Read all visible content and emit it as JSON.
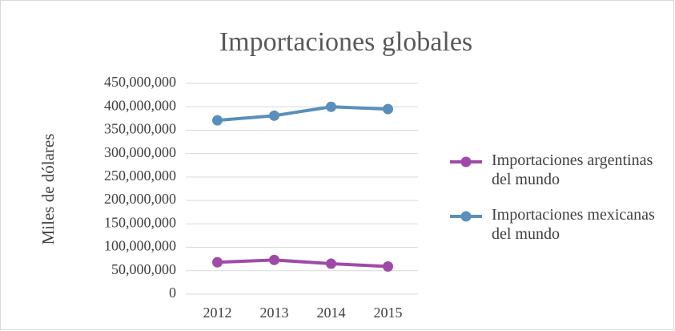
{
  "chart_data": {
    "type": "line",
    "title": "Importaciones globales",
    "y_label": "Miles de dólares",
    "categories": [
      "2012",
      "2013",
      "2014",
      "2015"
    ],
    "series": [
      {
        "name": "Importaciones argentinas del mundo",
        "color": "#a04aa8",
        "values": [
          68000000,
          73000000,
          65000000,
          59000000
        ]
      },
      {
        "name": "Importaciones mexicanas del mundo",
        "color": "#5a8fbb",
        "values": [
          371000000,
          381000000,
          400000000,
          395000000
        ]
      }
    ],
    "ylim": [
      0,
      450000000
    ],
    "yticks": [
      0,
      {
        "value": 50000000,
        "label": "50,000,000"
      },
      {
        "value": 100000000,
        "label": "100,000,000"
      },
      {
        "value": 150000000,
        "label": "150,000,000"
      },
      {
        "value": 200000000,
        "label": "200,000,000"
      },
      {
        "value": 250000000,
        "label": "250,000,000"
      },
      {
        "value": 300000000,
        "label": "300,000,000"
      },
      {
        "value": 350000000,
        "label": "350,000,000"
      },
      {
        "value": 400000000,
        "label": "400,000,000"
      },
      {
        "value": 450000000,
        "label": "450,000,000"
      }
    ],
    "grid": true,
    "legend": "right"
  }
}
